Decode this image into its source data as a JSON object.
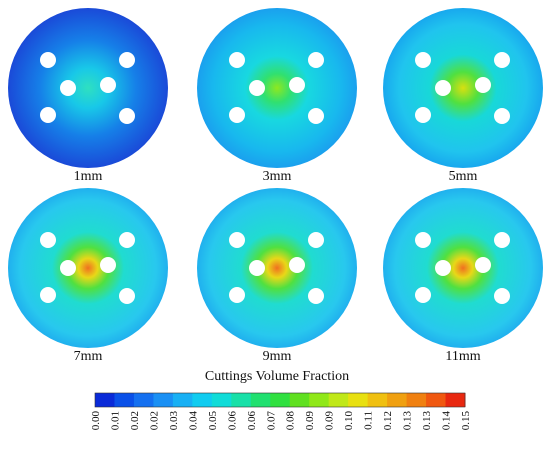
{
  "panels": [
    {
      "label": "1mm"
    },
    {
      "label": "3mm"
    },
    {
      "label": "5mm"
    },
    {
      "label": "7mm"
    },
    {
      "label": "9mm"
    },
    {
      "label": "11mm"
    }
  ],
  "colorbar": {
    "title": "Cuttings Volume Fraction",
    "ticks": [
      "0.00",
      "0.01",
      "0.02",
      "0.02",
      "0.03",
      "0.04",
      "0.05",
      "0.06",
      "0.06",
      "0.07",
      "0.08",
      "0.09",
      "0.09",
      "0.10",
      "0.11",
      "0.12",
      "0.13",
      "0.13",
      "0.14",
      "0.15"
    ]
  }
}
